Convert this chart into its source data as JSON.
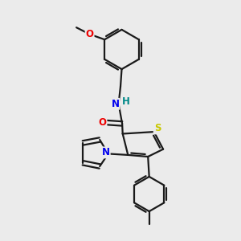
{
  "bg_color": "#ebebeb",
  "bond_color": "#1a1a1a",
  "bond_width": 1.6,
  "atom_colors": {
    "S": "#c8c800",
    "N": "#0000ee",
    "O": "#ee0000",
    "H": "#008888",
    "C": "#1a1a1a"
  },
  "font_size": 8.5,
  "fig_size": [
    3.0,
    3.0
  ],
  "dpi": 100
}
